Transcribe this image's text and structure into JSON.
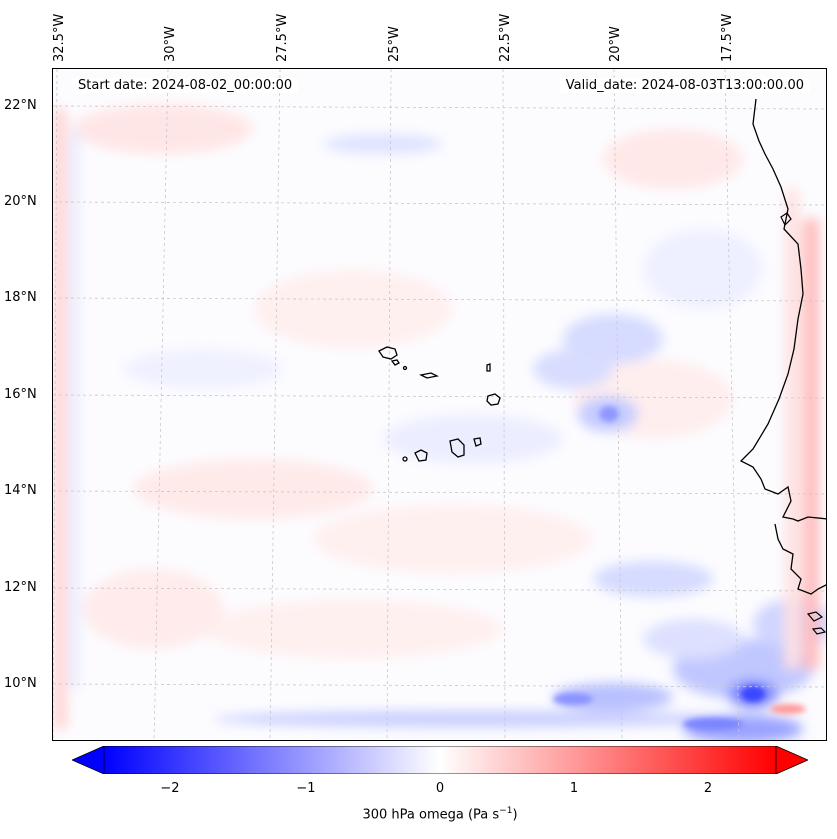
{
  "map": {
    "lon_labels": [
      "32.5°W",
      "30°W",
      "27.5°W",
      "25°W",
      "22.5°W",
      "20°W",
      "17.5°W"
    ],
    "lat_labels": [
      "22°N",
      "20°N",
      "18°N",
      "16°N",
      "14°N",
      "12°N",
      "10°N"
    ],
    "start_date": "Start date: 2024-08-02_00:00:00",
    "valid_date": "Valid_date: 2024-08-03T13:00:00.00",
    "gridlines": true,
    "colormap": "bwr"
  },
  "colorbar": {
    "title": "300 hPa omega (Pa s",
    "title_sup": "−1",
    "title_end": ")",
    "range": [
      -2.6,
      2.6
    ],
    "ticks": [
      "−2",
      "−1",
      "0",
      "1",
      "2"
    ],
    "extend": "both",
    "colors": {
      "min": "#0000ff",
      "mid": "#ffffff",
      "max": "#ff0000"
    }
  }
}
